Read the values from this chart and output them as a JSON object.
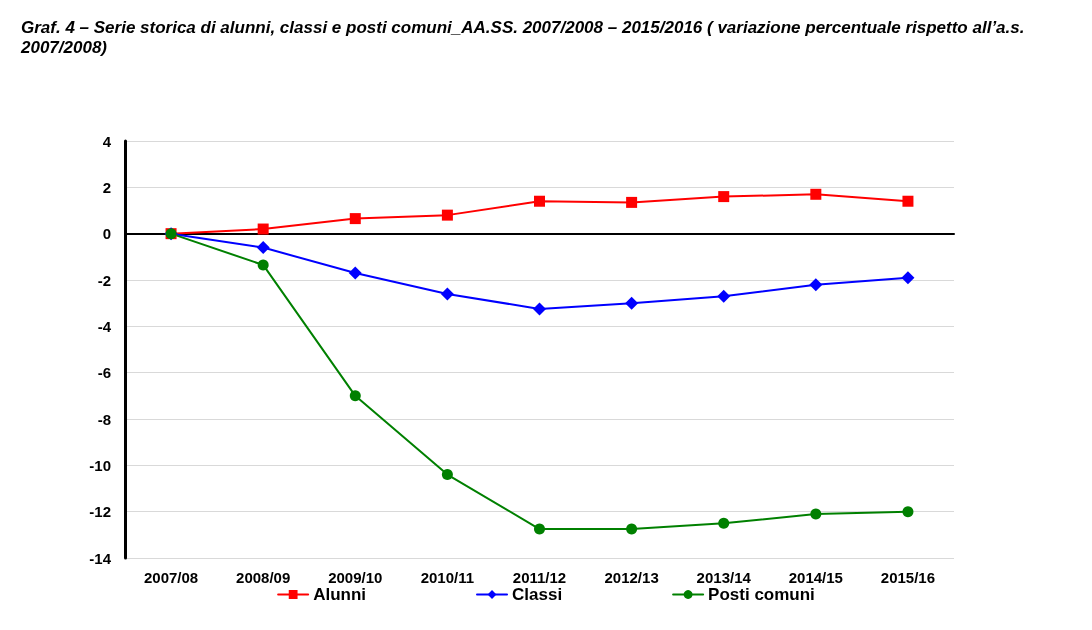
{
  "chart_data": {
    "type": "line",
    "title": "Graf. 4 – Serie storica di alunni, classi e posti comuni_AA.SS. 2007/2008 – 2015/2016 ( variazione percentuale rispetto all’a.s. 2007/2008)",
    "categories": [
      "2007/08",
      "2008/09",
      "2009/10",
      "2010/11",
      "2011/12",
      "2012/13",
      "2013/14",
      "2014/15",
      "2015/16"
    ],
    "series": [
      {
        "name": "Alunni",
        "color": "#ff0000",
        "marker": "square",
        "values": [
          0,
          0.2,
          0.65,
          0.8,
          1.4,
          1.35,
          1.6,
          1.7,
          1.4
        ]
      },
      {
        "name": "Classi",
        "color": "#0000ff",
        "marker": "diamond",
        "values": [
          0,
          -0.6,
          -1.7,
          -2.6,
          -3.25,
          -3.0,
          -2.7,
          -2.2,
          -1.9
        ]
      },
      {
        "name": "Posti comuni",
        "color": "#008000",
        "marker": "circle",
        "values": [
          0,
          -1.35,
          -7.0,
          -10.4,
          -12.75,
          -12.75,
          -12.5,
          -12.1,
          -12.0
        ]
      }
    ],
    "ylim": [
      -14,
      4
    ],
    "yticks": [
      -14,
      -12,
      -10,
      -8,
      -6,
      -4,
      -2,
      0,
      2,
      4
    ],
    "grid": "y",
    "legend": "bottom",
    "line_style": "solid"
  }
}
